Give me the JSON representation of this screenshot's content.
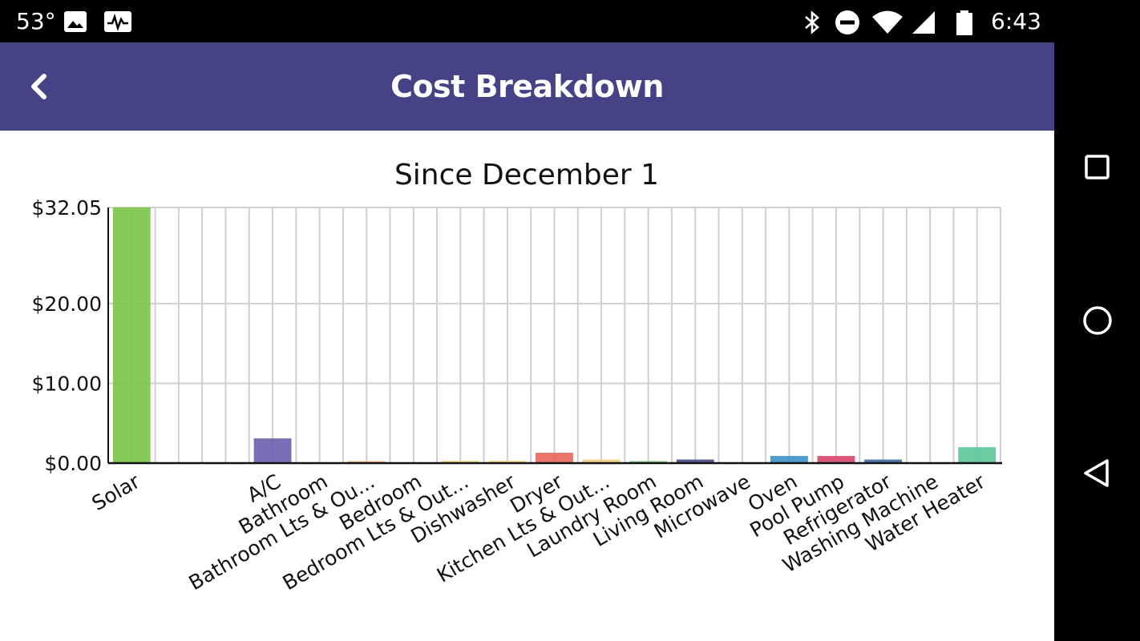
{
  "status_bar": {
    "temperature": "53°",
    "time": "6:43",
    "icons": [
      "image-icon",
      "pulse-icon",
      "bluetooth-icon",
      "do-not-disturb-icon",
      "wifi-icon",
      "cell-signal-icon",
      "battery-icon"
    ]
  },
  "app_bar": {
    "title": "Cost Breakdown",
    "back_icon": "chevron-left-icon",
    "color": "#454386"
  },
  "nav_bar": {
    "icons": [
      "recents-square-icon",
      "home-circle-icon",
      "back-triangle-icon"
    ]
  },
  "chart_data": {
    "type": "bar",
    "title": "Since December 1",
    "xlabel": "",
    "ylabel": "",
    "ylim": [
      0,
      32.05
    ],
    "y_ticks": [
      0,
      10,
      20,
      32.05
    ],
    "y_tick_labels": [
      "$0.00",
      "$10.00",
      "$20.00",
      "$32.05"
    ],
    "grid": true,
    "categories": [
      "Solar",
      "",
      "",
      "A/C",
      "Bathroom",
      "Bathroom Lts & Ou...",
      "Bedroom",
      "Bedroom Lts & Out...",
      "Dishwasher",
      "Dryer",
      "Kitchen Lts & Out...",
      "Laundry Room",
      "Living Room",
      "Microwave",
      "Oven",
      "Pool Pump",
      "Refrigerator",
      "Washing Machine",
      "Water Heater"
    ],
    "values": [
      32.05,
      0,
      0,
      3.1,
      0,
      0.25,
      0,
      0.3,
      0.3,
      1.3,
      0.45,
      0.25,
      0.45,
      0,
      0.9,
      0.9,
      0.45,
      0,
      2.0
    ],
    "colors": [
      "#7cc64a",
      "#ffffff",
      "#ffffff",
      "#6c63b0",
      "#ffffff",
      "#f2b27a",
      "#ffffff",
      "#f3d97a",
      "#f3d97a",
      "#e8695f",
      "#f2d080",
      "#7fbf7f",
      "#4a4a8a",
      "#ffffff",
      "#3f95c8",
      "#d94a6e",
      "#3d6ea0",
      "#ffffff",
      "#5fc79a"
    ]
  }
}
